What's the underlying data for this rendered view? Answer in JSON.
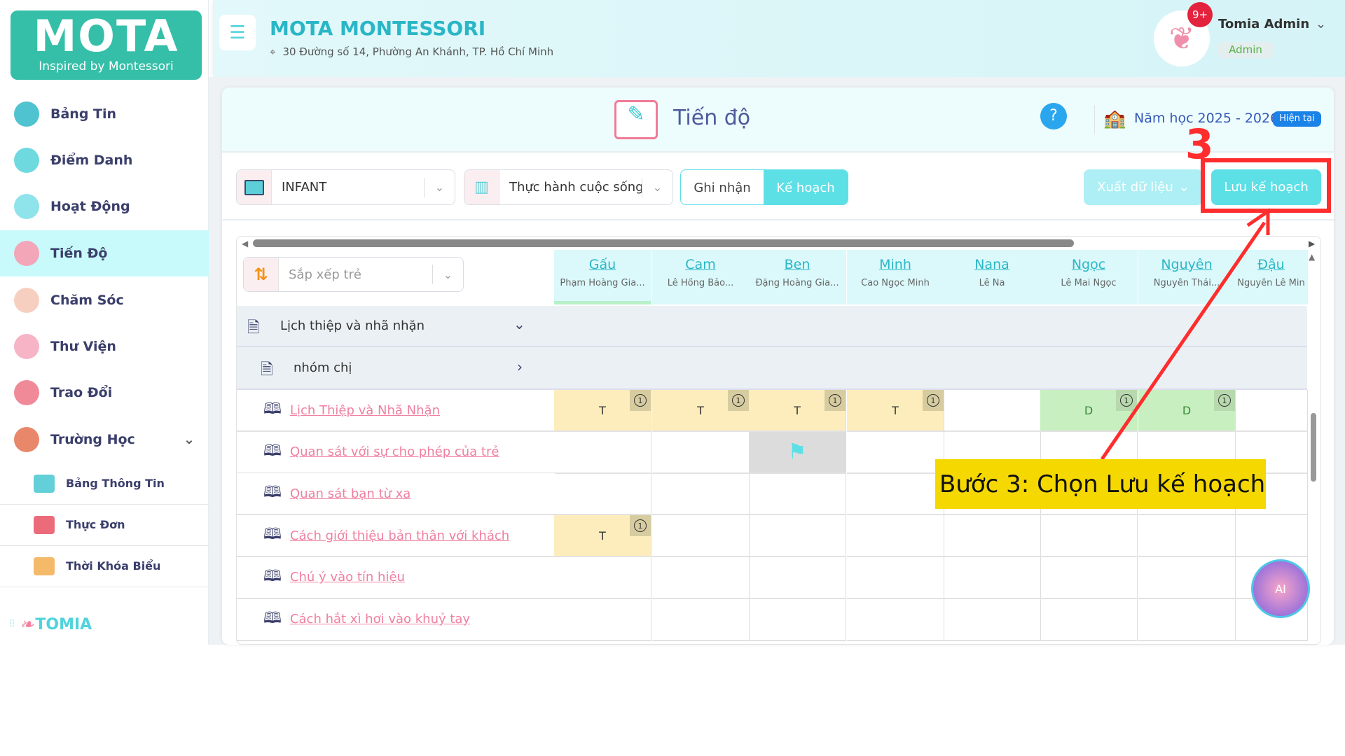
{
  "brand": {
    "logo_text": "MOTA",
    "logo_tagline": "Inspired by Montessori",
    "footer_logo": "TOMIA"
  },
  "sidebar": {
    "items": [
      {
        "label": "Bảng Tin",
        "icon": "globe-icon",
        "color": "#4fc3d0"
      },
      {
        "label": "Điểm Danh",
        "icon": "clock-icon",
        "color": "#6fd9e0"
      },
      {
        "label": "Hoạt Động",
        "icon": "atom-icon",
        "color": "#8fe3ea"
      },
      {
        "label": "Tiến Độ",
        "icon": "progress-book-icon",
        "color": "#f2a6b8",
        "active": true
      },
      {
        "label": "Chăm Sóc",
        "icon": "care-icon",
        "color": "#f7cfc0"
      },
      {
        "label": "Thư Viện",
        "icon": "library-icon",
        "color": "#f6b4c6"
      },
      {
        "label": "Trao Đổi",
        "icon": "chat-icon",
        "color": "#f08a99"
      },
      {
        "label": "Trường Học",
        "icon": "school-icon",
        "color": "#e8876a",
        "expandable": true
      }
    ],
    "subitems": [
      {
        "label": "Bảng Thông Tin",
        "icon": "megaphone-icon",
        "color": "#63cfd8"
      },
      {
        "label": "Thực Đơn",
        "icon": "menu-icon",
        "color": "#ec6b7a"
      },
      {
        "label": "Thời Khóa Biểu",
        "icon": "calendar-icon",
        "color": "#f5b96a"
      }
    ]
  },
  "header": {
    "school_name": "MOTA MONTESSORI",
    "address": "30 Đường số 14, Phường An Khánh, TP. Hồ Chí Minh",
    "user_name": "Tomia Admin",
    "user_role": "Admin",
    "notification_count": "9+"
  },
  "page": {
    "title": "Tiến độ",
    "school_year": "Năm học 2025 - 2026",
    "current_badge": "Hiện tại"
  },
  "toolbar": {
    "class_select": "INFANT",
    "area_select": "Thực hành cuộc sống",
    "tab_record": "Ghi nhận",
    "tab_plan": "Kế hoạch",
    "active_tab": "plan",
    "export": "Xuất dữ liệu",
    "save_plan": "Lưu kế hoạch",
    "sort_placeholder": "Sắp xếp trẻ"
  },
  "students": [
    {
      "nick": "Gấu",
      "name": "Phạm Hoàng Gia..."
    },
    {
      "nick": "Cam",
      "name": "Lê Hồng Bảo..."
    },
    {
      "nick": "Ben",
      "name": "Đặng Hoàng Gia..."
    },
    {
      "nick": "Minh",
      "name": "Cao Ngọc Minh"
    },
    {
      "nick": "Nana",
      "name": "Lê Na"
    },
    {
      "nick": "Ngọc",
      "name": "Lê Mai Ngọc"
    },
    {
      "nick": "Nguyên",
      "name": "Nguyễn Thái..."
    },
    {
      "nick": "Đậu",
      "name": "Nguyễn Lê Min"
    }
  ],
  "group": {
    "label": "Lịch thiệp và nhã nhặn",
    "subgroup": "nhóm chị"
  },
  "lessons": [
    {
      "label": "Lịch Thiệp và Nhã Nhặn",
      "cells": [
        "T",
        "T",
        "T",
        "T",
        "",
        "D",
        "D",
        ""
      ]
    },
    {
      "label": "Quan sát với sự cho phép của trẻ",
      "cells": [
        "",
        "",
        "flag",
        "",
        "",
        "",
        "",
        ""
      ]
    },
    {
      "label": "Quan sát bạn từ xa",
      "cells": [
        "",
        "",
        "",
        "",
        "",
        "",
        "",
        ""
      ]
    },
    {
      "label": "Cách giới thiệu bản thân với khách",
      "cells": [
        "T",
        "",
        "",
        "",
        "",
        "",
        "",
        ""
      ]
    },
    {
      "label": "Chú ý vào tín hiệu",
      "cells": [
        "",
        "",
        "",
        "",
        "",
        "",
        "",
        ""
      ]
    },
    {
      "label": "Cách hắt xì hơi vào khuỷ tay",
      "cells": [
        "",
        "",
        "",
        "",
        "",
        "",
        "",
        ""
      ]
    }
  ],
  "cell_badge": "1",
  "annotation": {
    "step_number": "3",
    "text": "Bước 3: Chọn Lưu kế hoạch",
    "color": "#ff2d2d",
    "box_color": "#f5d800"
  },
  "ai_button": "AI",
  "colors": {
    "accent": "#5ddfe6",
    "title": "#2ab6c6",
    "active_nav": "#c8fafc"
  }
}
